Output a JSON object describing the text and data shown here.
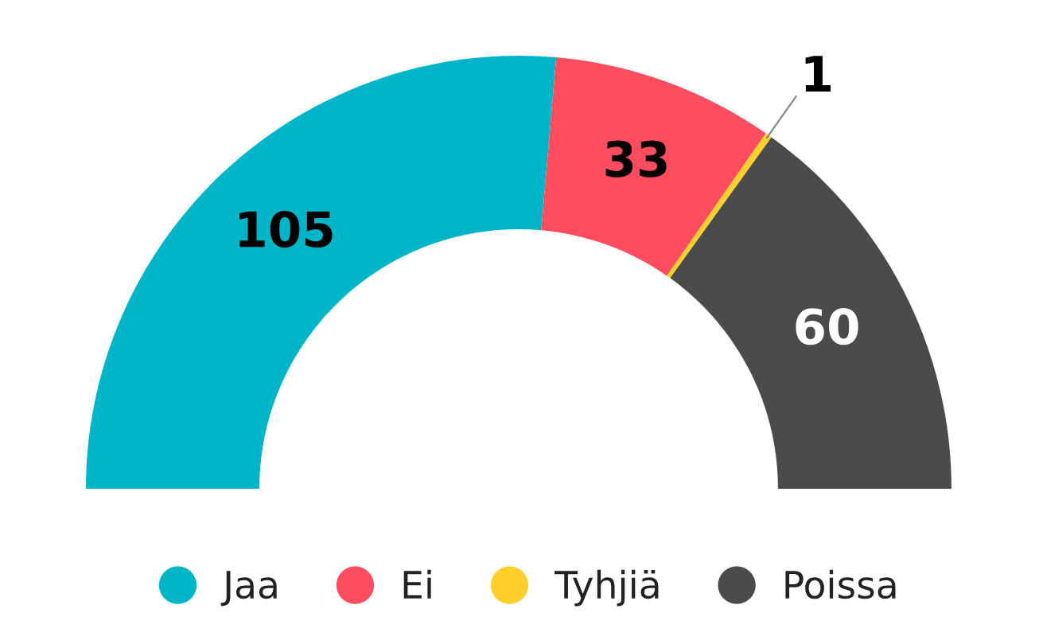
{
  "chart_data": {
    "type": "donut",
    "categories": [
      "Jaa",
      "Ei",
      "Tyhjiä",
      "Poissa"
    ],
    "values": [
      105,
      33,
      1,
      60
    ],
    "colors": [
      "#00b5c8",
      "#ff4c5f",
      "#ffd02a",
      "#4b4b4b"
    ],
    "data_labels": true,
    "legend": "bottom"
  }
}
